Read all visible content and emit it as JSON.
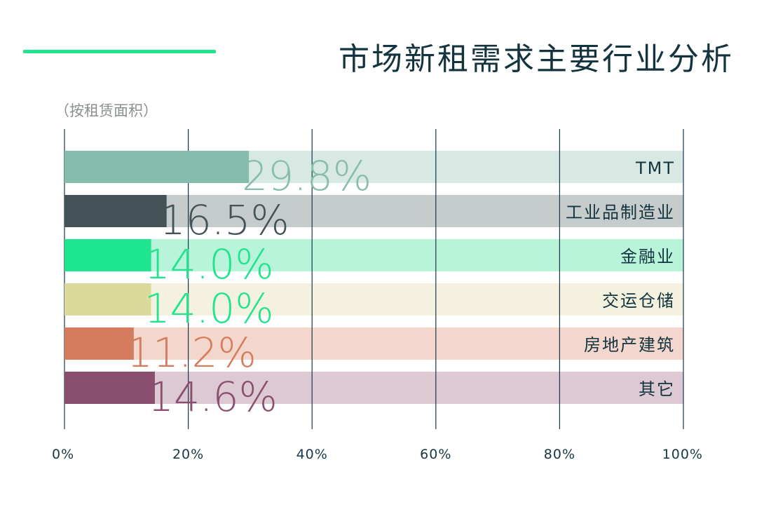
{
  "title": "市场新租需求主要行业分析",
  "subtitle": "（按租赁面积）",
  "colors": {
    "accent": "#22e38e",
    "axis": "#173746",
    "title": "#13343f",
    "label": "#13343f",
    "tick": "#173746"
  },
  "chart_data": {
    "type": "bar",
    "orientation": "horizontal",
    "title": "市场新租需求主要行业分析",
    "subtitle": "（按租赁面积）",
    "xlim": [
      0,
      100
    ],
    "x_ticks": [
      "0%",
      "20%",
      "40%",
      "60%",
      "80%",
      "100%"
    ],
    "grid": true,
    "categories": [
      "TMT",
      "工业品制造业",
      "金融业",
      "交运仓储",
      "房地产建筑",
      "其它"
    ],
    "values": [
      29.8,
      16.5,
      14.0,
      14.0,
      11.2,
      14.6
    ],
    "value_labels": [
      "29.8%",
      "16.5%",
      "14.0%",
      "14.0%",
      "11.2%",
      "14.6%"
    ],
    "bar_colors": [
      "#85bcac",
      "#435358",
      "#1ee68f",
      "#dcd99c",
      "#d57c5e",
      "#8a4f6f"
    ],
    "track_colors": [
      "#d8e9e4",
      "#c6cbcb",
      "#b8f4d9",
      "#f4f2df",
      "#f3d7cd",
      "#dcc9d4"
    ],
    "label_colors": [
      "#88bcac",
      "#435358",
      "#22e38e",
      "#22e38e",
      "#d57c5e",
      "#8a4f6f"
    ]
  }
}
